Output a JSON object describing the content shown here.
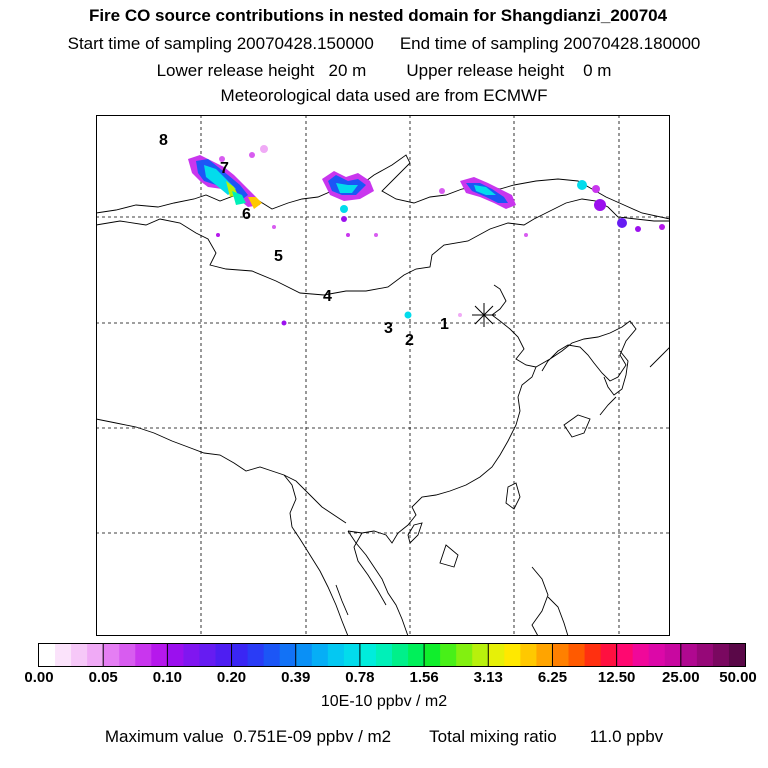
{
  "header": {
    "title": "Fire CO source contributions in nested domain for Shangdianzi_200704",
    "start_label": "Start time of sampling 20070428.150000",
    "end_label": "End time of sampling 20070428.180000",
    "lower_label": "Lower release height   20 m",
    "upper_label": "Upper release height    0 m",
    "met_label": "Meteorological data used are from ECMWF"
  },
  "map": {
    "receptor_symbol": "asterisk",
    "labels": [
      "1",
      "2",
      "3",
      "4",
      "5",
      "6",
      "7",
      "8"
    ]
  },
  "colorbar": {
    "tick_labels": [
      "0.00",
      "0.05",
      "0.10",
      "0.20",
      "0.39",
      "0.78",
      "1.56",
      "3.13",
      "6.25",
      "12.50",
      "25.00",
      "50.00"
    ],
    "colors": [
      "#ffffff",
      "#fbe3fb",
      "#f6c8f8",
      "#f0aaf6",
      "#e57ef3",
      "#d85cf0",
      "#c936ee",
      "#b618ec",
      "#9b10ee",
      "#8016f0",
      "#661cf2",
      "#4e1ef2",
      "#3a26f4",
      "#2a3cf6",
      "#1c56f6",
      "#1272f6",
      "#0a90f6",
      "#06aef6",
      "#04c8f2",
      "#02dcec",
      "#00ecdc",
      "#00f0b8",
      "#00f08a",
      "#00f05a",
      "#10ee2c",
      "#48f018",
      "#82f010",
      "#b8f00c",
      "#e6f008",
      "#ffe800",
      "#ffc800",
      "#ffa400",
      "#ff8000",
      "#ff5a00",
      "#ff3010",
      "#ff1040",
      "#ff0870",
      "#f0089a",
      "#dc08a8",
      "#c808a0",
      "#b00890",
      "#960878",
      "#7a0860",
      "#5a0848"
    ],
    "units": "10E-10 ppbv / m2"
  },
  "footer": {
    "max_label": "Maximum value  0.751E-09 ppbv / m2",
    "total_label": "Total mixing ratio       11.0 ppbv"
  }
}
